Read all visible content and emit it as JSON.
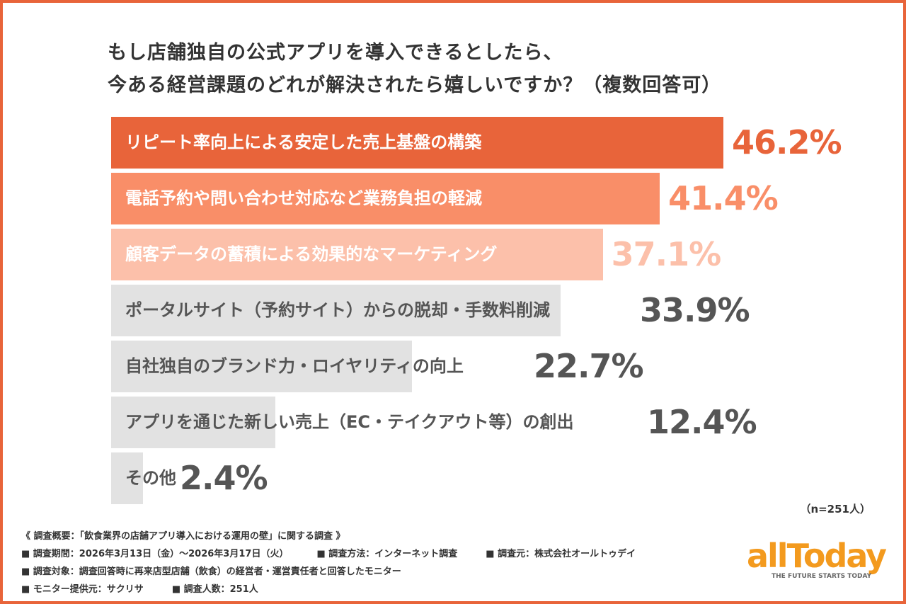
{
  "chart_data": {
    "type": "bar",
    "orientation": "horizontal",
    "title": "もし店舗独自の公式アプリを導入できるとしたら、\n今ある経営課題のどれが解決されたら嬉しいですか？（複数回答可）",
    "categories": [
      "リピート率向上による安定した売上基盤の構築",
      "電話予約や問い合わせ対応など業務負担の軽減",
      "顧客データの蓄積による効果的なマーケティング",
      "ポータルサイト（予約サイト）からの脱却・手数料削減",
      "自社独自のブランド力・ロイヤリティの向上",
      "アプリを通じた新しい売上（EC・テイクアウト等）の創出",
      "その他"
    ],
    "values": [
      46.2,
      41.4,
      37.1,
      33.9,
      22.7,
      12.4,
      2.4
    ],
    "value_labels": [
      "46.2%",
      "41.4%",
      "37.1%",
      "33.9%",
      "22.7%",
      "12.4%",
      "2.4%"
    ],
    "bar_colors": [
      "#e8643a",
      "#f98e68",
      "#fcc0aa",
      "#e2e2e2",
      "#e2e2e2",
      "#e2e2e2",
      "#e2e2e2"
    ],
    "label_colors": [
      "#ffffff",
      "#ffffff",
      "#ffffff",
      "#555555",
      "#555555",
      "#555555",
      "#555555"
    ],
    "value_colors": [
      "#e8643a",
      "#f98e68",
      "#fcc0aa",
      "#555555",
      "#555555",
      "#555555",
      "#555555"
    ],
    "xlim": [
      0,
      46.2
    ],
    "grid": false,
    "sample": "（n=251人）"
  },
  "title_lines": [
    "もし店舗独自の公式アプリを導入できるとしたら、",
    "今ある経営課題のどれが解決されたら嬉しいですか？（複数回答可）"
  ],
  "notes": {
    "heading": "《 調査概要：「飲食業界の店舗アプリ導入における運用の壁」に関する調査 》",
    "period": "■ 調査期間：2026年3月13日（金）～2026年3月17日（火）",
    "method": "■ 調査方法：インターネット調査",
    "source": "■ 調査元：株式会社オールトゥデイ",
    "target": "■ 調査対象：調査回答時に再来店型店舗（飲食）の経営者・運営責任者と回答したモニター",
    "provider": "■ モニター提供元：サクリサ",
    "count": "■ 調査人数：251人"
  },
  "logo": {
    "name": "allToday",
    "tagline": "THE FUTURE STARTS TODAY"
  }
}
